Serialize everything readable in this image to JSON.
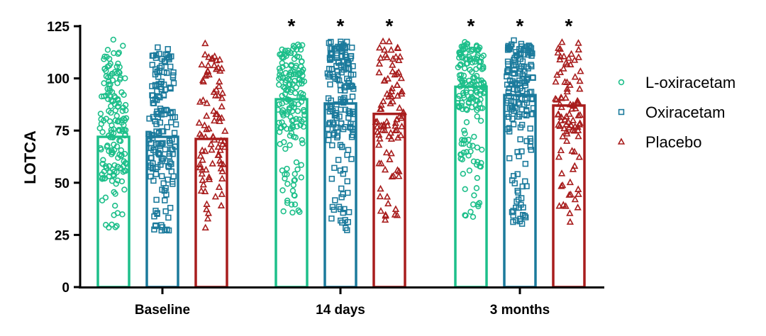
{
  "chart_data": {
    "type": "bar",
    "title": "",
    "xlabel": "",
    "ylabel": "LOTCA",
    "ylim": [
      0,
      125
    ],
    "yticks": [
      "0",
      "25",
      "50",
      "75",
      "100",
      "125"
    ],
    "categories": [
      "Baseline",
      "14 days",
      "3 months"
    ],
    "legend_position": "right",
    "series": [
      {
        "name": "L-oxiracetam",
        "marker": "circle",
        "color": "#1dbf8a",
        "values": [
          72,
          90,
          96
        ],
        "significant": [
          "",
          "*",
          "*"
        ],
        "ranges": [
          [
            27,
            119
          ],
          [
            35,
            119
          ],
          [
            33,
            119
          ]
        ]
      },
      {
        "name": "Oxiracetam",
        "marker": "square",
        "color": "#1b7a9c",
        "values": [
          72,
          88,
          92
        ],
        "significant": [
          "",
          "*",
          "*"
        ],
        "ranges": [
          [
            26,
            116
          ],
          [
            27,
            119
          ],
          [
            30,
            119
          ]
        ]
      },
      {
        "name": "Placebo",
        "marker": "triangle",
        "color": "#a81d1d",
        "values": [
          71,
          83,
          87
        ],
        "significant": [
          "",
          "*",
          "*"
        ],
        "ranges": [
          [
            28,
            117
          ],
          [
            32,
            118
          ],
          [
            30,
            118
          ]
        ]
      }
    ]
  }
}
